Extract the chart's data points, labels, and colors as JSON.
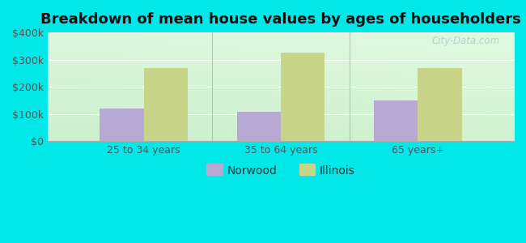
{
  "title": "Breakdown of mean house values by ages of householders",
  "categories": [
    "25 to 34 years",
    "35 to 64 years",
    "65 years+"
  ],
  "norwood_values": [
    120000,
    108000,
    150000
  ],
  "illinois_values": [
    270000,
    325000,
    270000
  ],
  "norwood_color": "#b8a8d4",
  "illinois_color": "#c8d48a",
  "ylim": [
    0,
    400000
  ],
  "yticks": [
    0,
    100000,
    200000,
    300000,
    400000
  ],
  "ytick_labels": [
    "$0",
    "$100k",
    "$200k",
    "$300k",
    "$400k"
  ],
  "bar_width": 0.32,
  "fig_bg_color": "#00e8e8",
  "legend_labels": [
    "Norwood",
    "Illinois"
  ],
  "watermark": "City-Data.com",
  "title_fontsize": 13,
  "tick_fontsize": 9,
  "legend_fontsize": 10
}
